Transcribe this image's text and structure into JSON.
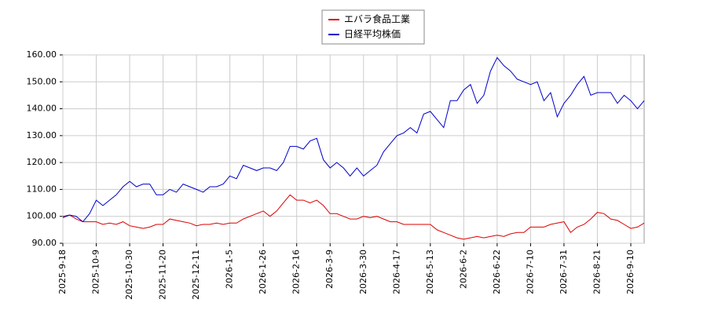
{
  "chart_data": {
    "type": "line",
    "categories": [
      "2025-9-18",
      null,
      null,
      null,
      null,
      "2025-10-9",
      null,
      null,
      null,
      null,
      "2025-10-30",
      null,
      null,
      null,
      null,
      "2025-11-20",
      null,
      null,
      null,
      null,
      "2025-12-11",
      null,
      null,
      null,
      null,
      "2026-1-5",
      null,
      null,
      null,
      null,
      "2026-1-26",
      null,
      null,
      null,
      null,
      "2026-2-16",
      null,
      null,
      null,
      null,
      "2026-3-9",
      null,
      null,
      null,
      null,
      "2026-3-30",
      null,
      null,
      null,
      null,
      "2026-4-17",
      null,
      null,
      null,
      null,
      "2026-5-13",
      null,
      null,
      null,
      null,
      "2026-6-2",
      null,
      null,
      null,
      null,
      "2026-6-22",
      null,
      null,
      null,
      null,
      "2026-7-10",
      null,
      null,
      null,
      null,
      "2026-7-31",
      null,
      null,
      null,
      null,
      "2026-8-21",
      null,
      null,
      null,
      null,
      "2026-9-10",
      null,
      null
    ],
    "series": [
      {
        "name": "エバラ食品工業",
        "color": "#dd0000",
        "values": [
          100,
          100.5,
          99,
          98,
          98,
          98,
          97,
          97.5,
          97,
          98,
          96.5,
          96,
          95.5,
          96,
          97,
          97,
          99,
          98.5,
          98,
          97.5,
          96.5,
          97,
          97,
          97.5,
          97,
          97.5,
          97.5,
          99,
          100,
          101,
          102,
          100,
          102,
          105,
          108,
          106,
          106,
          105,
          106,
          104,
          101,
          101,
          100,
          99,
          99,
          100,
          99.5,
          100,
          99,
          98,
          98,
          97,
          97,
          97,
          97,
          97,
          95,
          94,
          93,
          92,
          91.5,
          92,
          92.5,
          92,
          92.5,
          93,
          92.5,
          93.5,
          94,
          94,
          96,
          96,
          96,
          97,
          97.5,
          98,
          94,
          96,
          97,
          99,
          101.5,
          101,
          99,
          98.5,
          97,
          95.5,
          96,
          97.5
        ]
      },
      {
        "name": "日経平均株価",
        "color": "#0000cc",
        "values": [
          99.5,
          100.5,
          100,
          98,
          101,
          106,
          104,
          106,
          108,
          111,
          113,
          111,
          112,
          112,
          108,
          108,
          110,
          109,
          112,
          111,
          110,
          109,
          111,
          111,
          112,
          115,
          114,
          119,
          118,
          117,
          118,
          118,
          117,
          120,
          126,
          126,
          125,
          128,
          129,
          121,
          118,
          120,
          118,
          115,
          118,
          115,
          117,
          119,
          124,
          127,
          130,
          131,
          133,
          131,
          138,
          139,
          136,
          133,
          143,
          143,
          147,
          149,
          142,
          145,
          154,
          159,
          156,
          154,
          151,
          150,
          149,
          150,
          143,
          146,
          137,
          142,
          145,
          149,
          152,
          145,
          146,
          146,
          146,
          142,
          145,
          143,
          140,
          143
        ]
      }
    ],
    "ylim": [
      90,
      160
    ],
    "yticks": [
      {
        "value": 90,
        "label": "90.00"
      },
      {
        "value": 100,
        "label": "100.00"
      },
      {
        "value": 110,
        "label": "110.00"
      },
      {
        "value": 120,
        "label": "120.00"
      },
      {
        "value": 130,
        "label": "130.00"
      },
      {
        "value": 140,
        "label": "140.00"
      },
      {
        "value": 150,
        "label": "150.00"
      },
      {
        "value": 160,
        "label": "160.00"
      }
    ],
    "grid": true,
    "legend": "top"
  }
}
